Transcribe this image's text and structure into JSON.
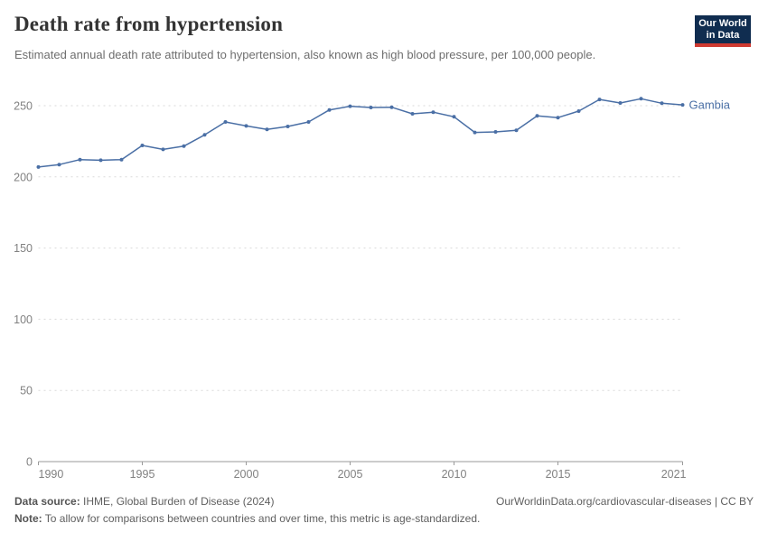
{
  "header": {
    "title": "Death rate from hypertension",
    "subtitle": "Estimated annual death rate attributed to hypertension, also known as high blood pressure, per 100,000 people."
  },
  "logo": {
    "line1": "Our World",
    "line2": "in Data",
    "bg_color": "#102d50",
    "bar_color": "#cf3a31"
  },
  "chart_data": {
    "type": "line",
    "title": "Death rate from hypertension",
    "xlabel": "",
    "ylabel": "",
    "x": [
      1990,
      1991,
      1992,
      1993,
      1994,
      1995,
      1996,
      1997,
      1998,
      1999,
      2000,
      2001,
      2002,
      2003,
      2004,
      2005,
      2006,
      2007,
      2008,
      2009,
      2010,
      2011,
      2012,
      2013,
      2014,
      2015,
      2016,
      2017,
      2018,
      2019,
      2020,
      2021
    ],
    "series": [
      {
        "name": "Gambia",
        "color": "#4a6fa5",
        "values": [
          206.9,
          208.6,
          212.1,
          211.7,
          212.1,
          222.1,
          219.3,
          221.6,
          229.5,
          238.6,
          235.8,
          233.3,
          235.4,
          238.6,
          247.0,
          249.6,
          248.7,
          248.9,
          244.3,
          245.4,
          242.2,
          231.2,
          231.6,
          232.7,
          242.8,
          241.6,
          246.2,
          254.4,
          251.9,
          254.9,
          251.7,
          250.6
        ]
      }
    ],
    "entity_label": "Gambia",
    "xticks": [
      1990,
      1995,
      2000,
      2005,
      2010,
      2015,
      2021
    ],
    "yticks": [
      0,
      50,
      100,
      150,
      200,
      250
    ],
    "xlim": [
      1990,
      2021
    ],
    "ylim": [
      0,
      260
    ],
    "grid": "horizontal-dashed",
    "grid_color": "#dadada",
    "axis_color": "#9a9a9a",
    "legend_position": "end-of-line"
  },
  "footer": {
    "source_label": "Data source:",
    "source_text": " IHME, Global Burden of Disease (2024)",
    "link_text": "OurWorldinData.org/cardiovascular-diseases | CC BY",
    "note_label": "Note:",
    "note_text": " To allow for comparisons between countries and over time, this metric is age-standardized."
  }
}
